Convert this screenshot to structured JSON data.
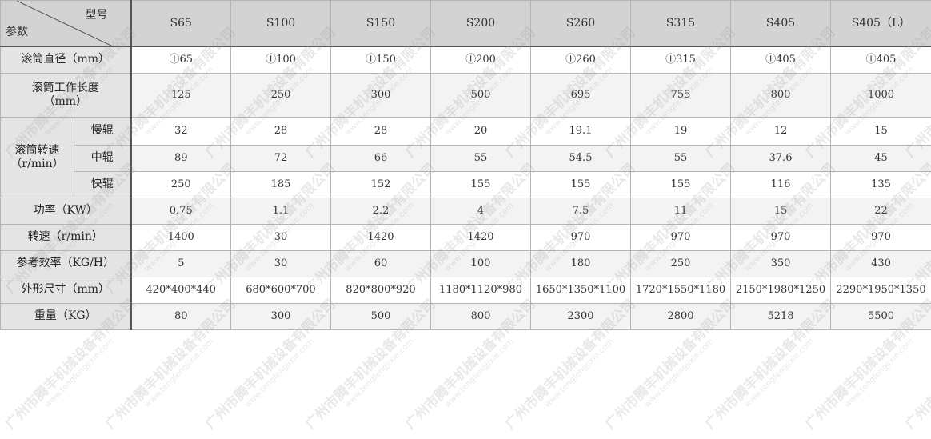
{
  "header": {
    "model_label": "型号",
    "param_label": "参数",
    "models": [
      "S65",
      "S100",
      "S150",
      "S200",
      "S260",
      "S315",
      "S405",
      "S405（L）"
    ]
  },
  "rows": [
    {
      "label": "滚筒直径（mm）",
      "values": [
        "Ⓘ65",
        "Ⓘ100",
        "Ⓘ150",
        "Ⓘ200",
        "Ⓘ260",
        "Ⓘ315",
        "Ⓘ405",
        "Ⓘ405"
      ]
    },
    {
      "label": "滚筒工作长度（mm）",
      "values": [
        "125",
        "250",
        "300",
        "500",
        "695",
        "755",
        "800",
        "1000"
      ]
    }
  ],
  "speed_group": {
    "label": "滚筒转速（r/min）",
    "rows": [
      {
        "label": "慢辊",
        "values": [
          "32",
          "28",
          "28",
          "20",
          "19.1",
          "19",
          "12",
          "15"
        ]
      },
      {
        "label": "中辊",
        "values": [
          "89",
          "72",
          "66",
          "55",
          "54.5",
          "55",
          "37.6",
          "45"
        ]
      },
      {
        "label": "快辊",
        "values": [
          "250",
          "185",
          "152",
          "155",
          "155",
          "155",
          "116",
          "135"
        ]
      }
    ]
  },
  "rows_after": [
    {
      "label": "功率（KW）",
      "values": [
        "0.75",
        "1.1",
        "2.2",
        "4",
        "7.5",
        "11",
        "15",
        "22"
      ]
    },
    {
      "label": "转速（r/min）",
      "values": [
        "1400",
        "30",
        "1420",
        "1420",
        "970",
        "970",
        "970",
        "970"
      ]
    },
    {
      "label": "参考效率（KG/H）",
      "values": [
        "5",
        "30",
        "60",
        "100",
        "180",
        "250",
        "350",
        "430"
      ]
    },
    {
      "label": "外形尺寸（mm）",
      "values": [
        "420*400*440",
        "680*600*700",
        "820*800*920",
        "1180*1120*980",
        "1650*1350*1100",
        "1720*1550*1180",
        "2150*1980*1250",
        "2290*1950*1350"
      ]
    },
    {
      "label": "重量（KG）",
      "values": [
        "80",
        "300",
        "500",
        "800",
        "2300",
        "2800",
        "5218",
        "5500"
      ]
    }
  ],
  "watermark": {
    "company": "广州市腾丰机械设备有限公司",
    "url": "www.tengfengjixie.com"
  }
}
